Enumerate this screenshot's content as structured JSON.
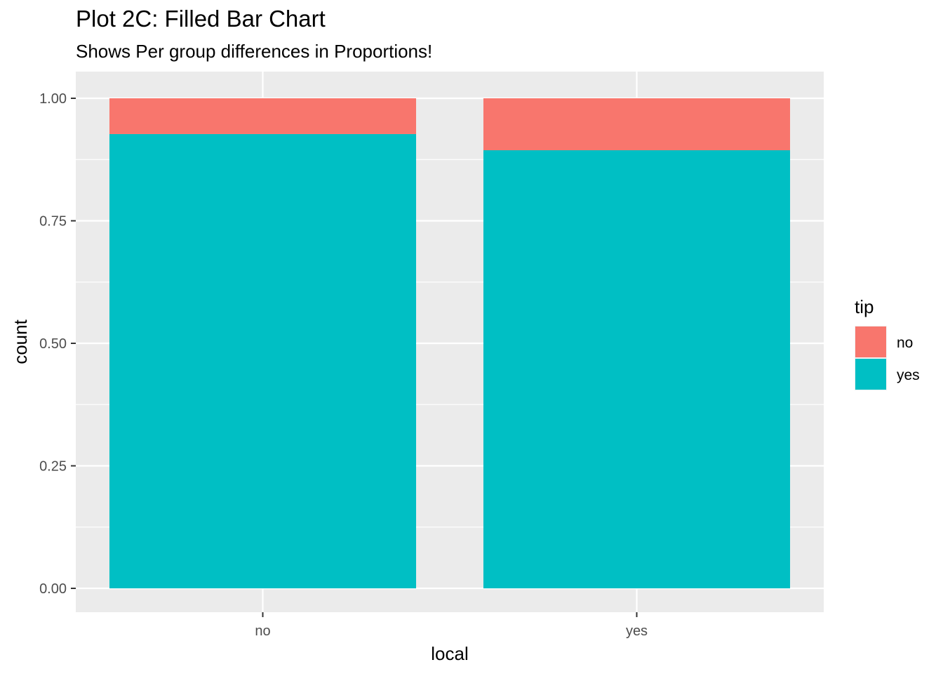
{
  "chart_data": {
    "type": "bar",
    "stacked": true,
    "position": "fill",
    "title": "Plot 2C: Filled Bar Chart",
    "subtitle": "Shows Per group differences in Proportions!",
    "xlabel": "local",
    "ylabel": "count",
    "categories": [
      "no",
      "yes"
    ],
    "series": [
      {
        "name": "no",
        "color": "#F8766D",
        "values": [
          0.073,
          0.106
        ]
      },
      {
        "name": "yes",
        "color": "#00BFC4",
        "values": [
          0.927,
          0.894
        ]
      }
    ],
    "ylim": [
      0,
      1
    ],
    "y_ticks": [
      "0.00",
      "0.25",
      "0.50",
      "0.75",
      "1.00"
    ],
    "grid": true,
    "legend": {
      "title": "tip",
      "placement": "right",
      "entries": [
        "no",
        "yes"
      ]
    },
    "panel_background": "#EBEBEB"
  }
}
